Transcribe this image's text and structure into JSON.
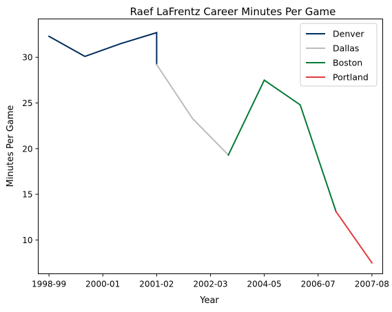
{
  "chart_data": {
    "type": "line",
    "title": "Raef LaFrentz Career Minutes Per Game",
    "xlabel": "Year",
    "ylabel": "Minutes Per Game",
    "x_ticks": [
      "1998-99",
      "2000-01",
      "2001-02",
      "2002-03",
      "2004-05",
      "2006-07",
      "2007-08"
    ],
    "y_ticks": [
      10,
      15,
      20,
      25,
      30
    ],
    "xlim": [
      -0.3,
      9.3
    ],
    "ylim": [
      6.3,
      34.2
    ],
    "grid": false,
    "legend_position": "top-right",
    "series": [
      {
        "name": "Denver",
        "color": "#002b5c",
        "x": [
          0,
          1,
          2,
          3,
          3
        ],
        "y": [
          32.3,
          30.1,
          31.5,
          32.7,
          29.2
        ]
      },
      {
        "name": "Dallas",
        "color": "#bbbbbb",
        "x": [
          3,
          4,
          5
        ],
        "y": [
          29.2,
          23.3,
          19.3
        ]
      },
      {
        "name": "Boston",
        "color": "#007a33",
        "x": [
          5,
          6,
          7,
          8
        ],
        "y": [
          19.3,
          27.5,
          24.8,
          13.1
        ]
      },
      {
        "name": "Portland",
        "color": "#e03a3e",
        "x": [
          8,
          9
        ],
        "y": [
          13.1,
          7.5
        ]
      }
    ]
  }
}
